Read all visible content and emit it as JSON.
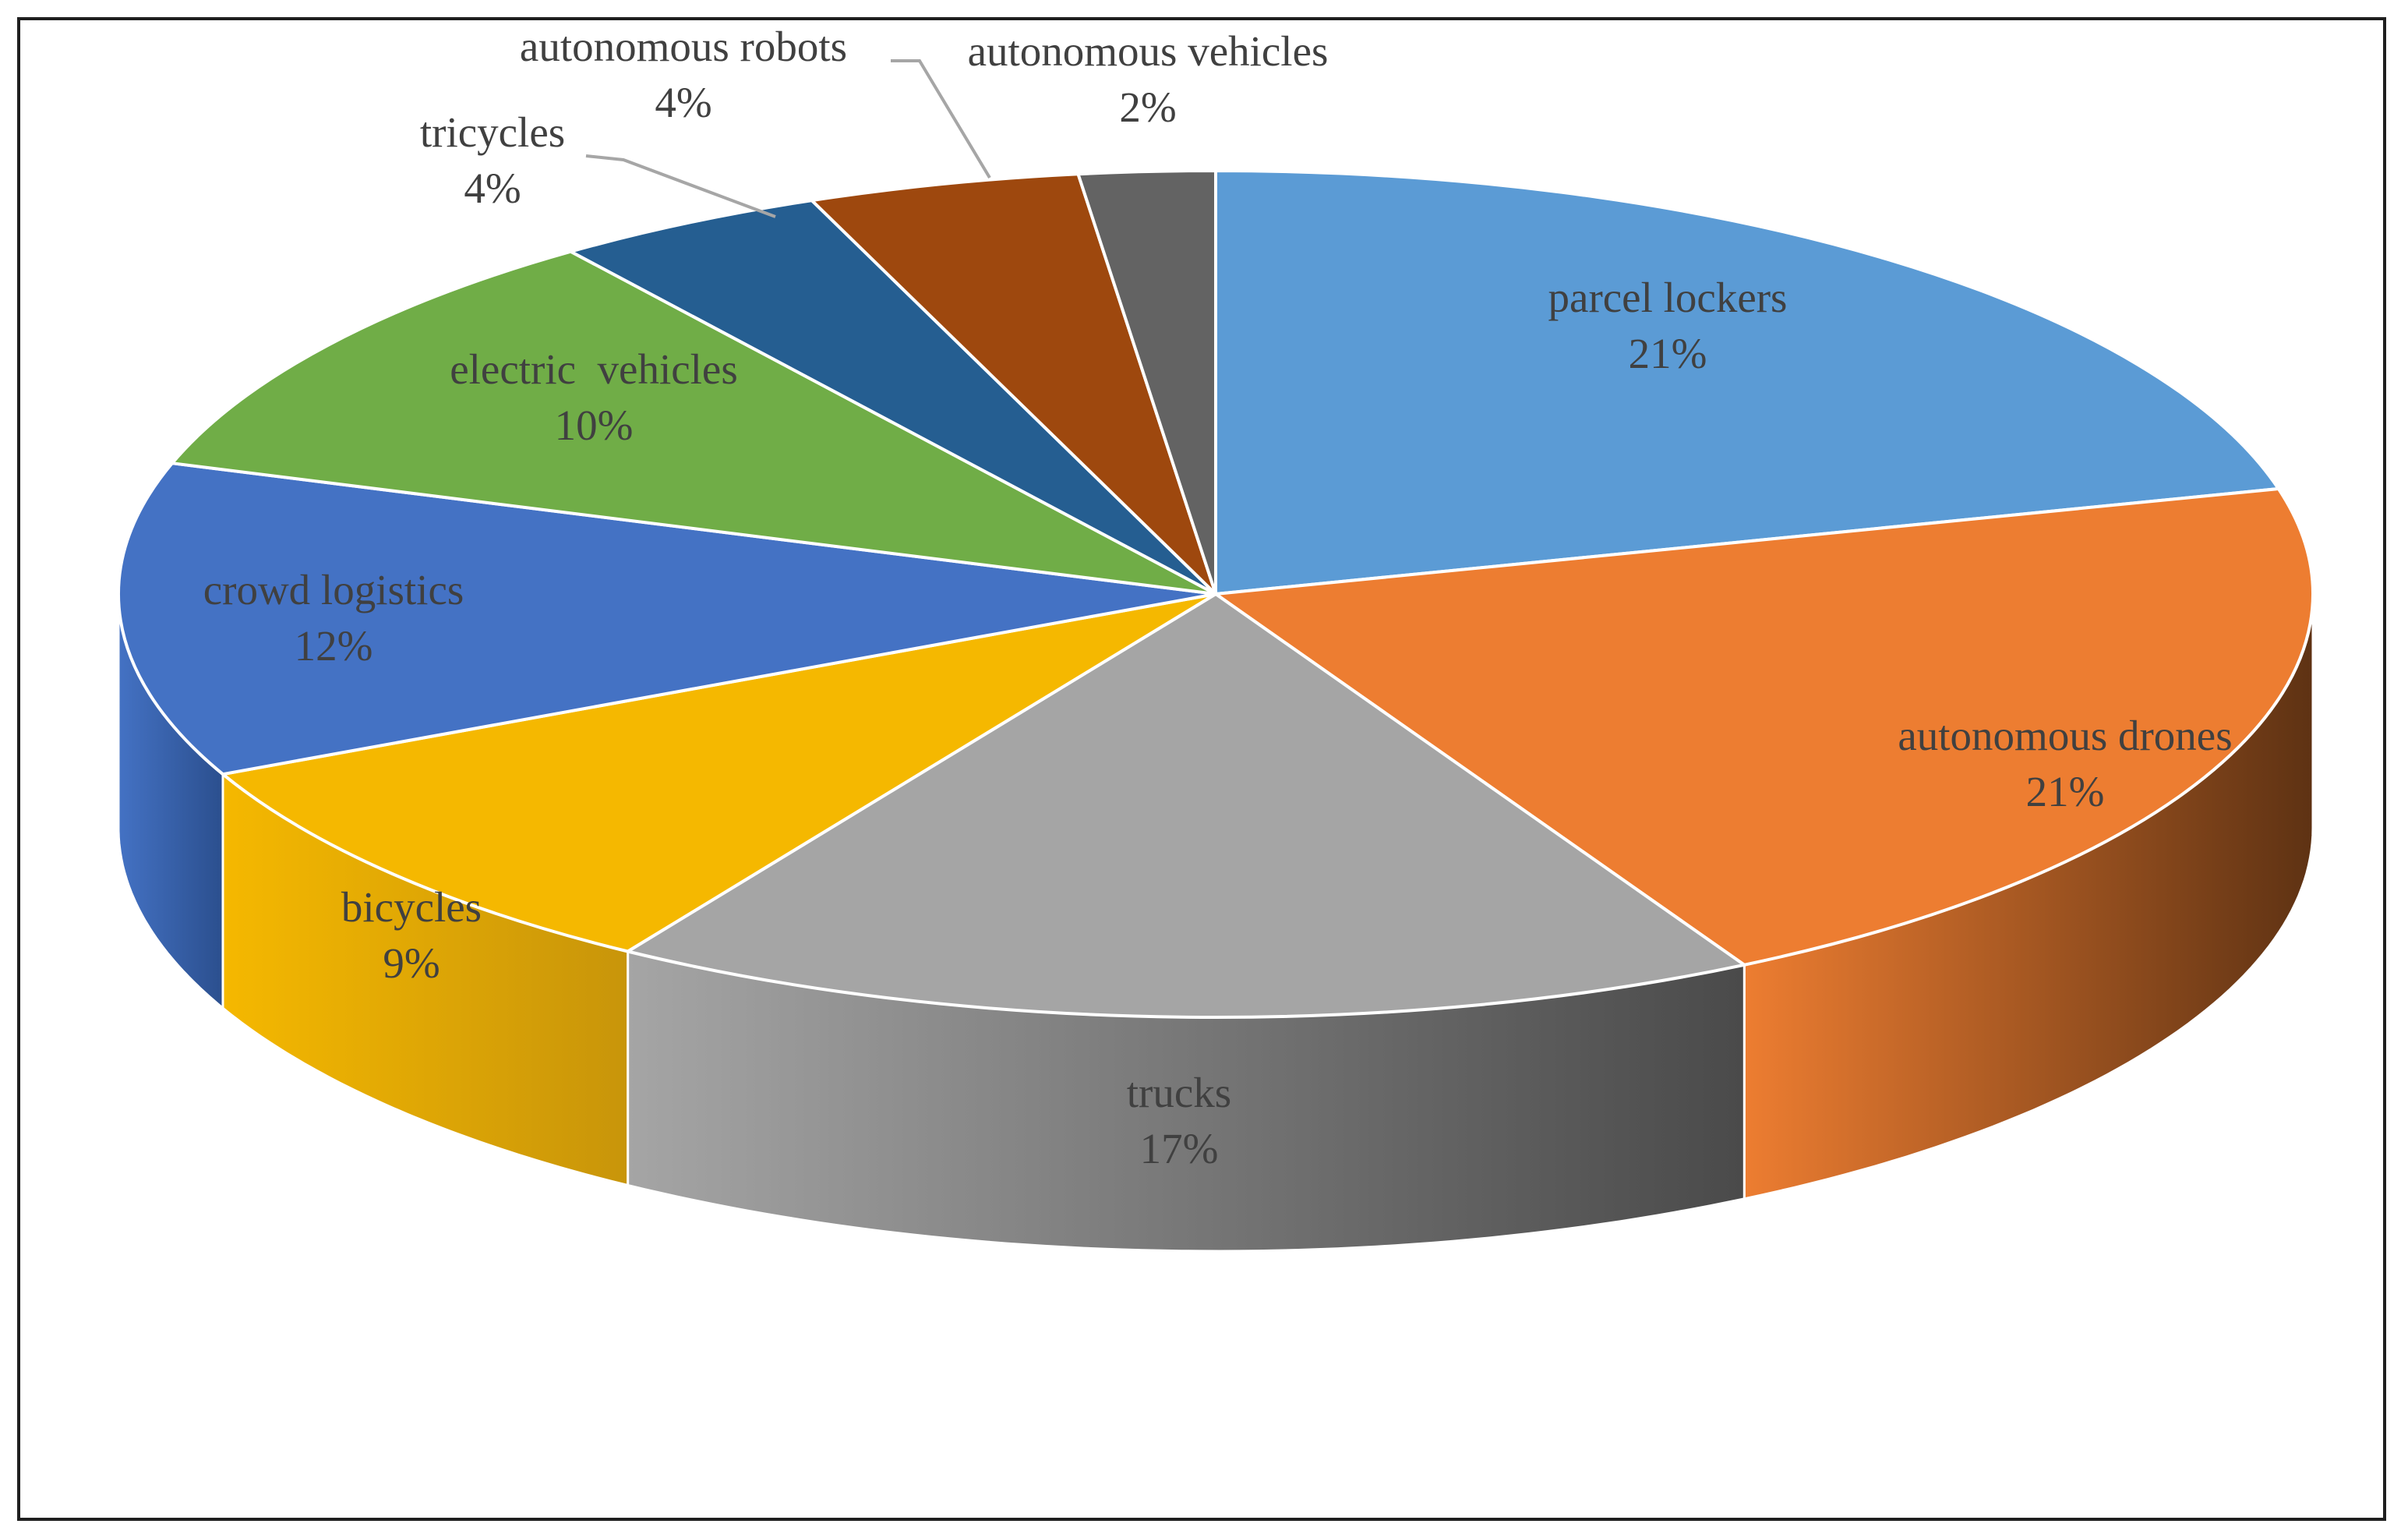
{
  "chart_data": {
    "type": "pie",
    "style": "3d-exploded-none",
    "title": "",
    "slices": [
      {
        "label": "parcel lockers",
        "value": 21,
        "display": "21%",
        "color": "#5B9BD5",
        "side_color": "#3A6E9E"
      },
      {
        "label": "autonomous drones",
        "value": 21,
        "display": "21%",
        "color": "#ED7D31",
        "side_color": "#5E3213"
      },
      {
        "label": "trucks",
        "value": 17,
        "display": "17%",
        "color": "#A5A5A5",
        "side_color": "#4A4A4A"
      },
      {
        "label": "bicycles",
        "value": 9,
        "display": "9%",
        "color": "#F5B800",
        "side_color": "#C8950A"
      },
      {
        "label": "crowd logistics",
        "value": 12,
        "display": "12%",
        "color": "#4472C4",
        "side_color": "#2B4F8E"
      },
      {
        "label": "electric  vehicles",
        "value": 10,
        "display": "10%",
        "color": "#70AD47",
        "side_color": "#4C7A2E"
      },
      {
        "label": "tricycles",
        "value": 4,
        "display": "4%",
        "color": "#255E91",
        "side_color": "#163B5C"
      },
      {
        "label": "autonomous robots",
        "value": 4,
        "display": "4%",
        "color": "#9E480E",
        "side_color": "#5E2B08"
      },
      {
        "label": "autonomous vehicles",
        "value": 2,
        "display": "2%",
        "color": "#636363",
        "side_color": "#3A3A3A"
      }
    ],
    "legend": "none",
    "data_labels": "category-and-percent"
  }
}
